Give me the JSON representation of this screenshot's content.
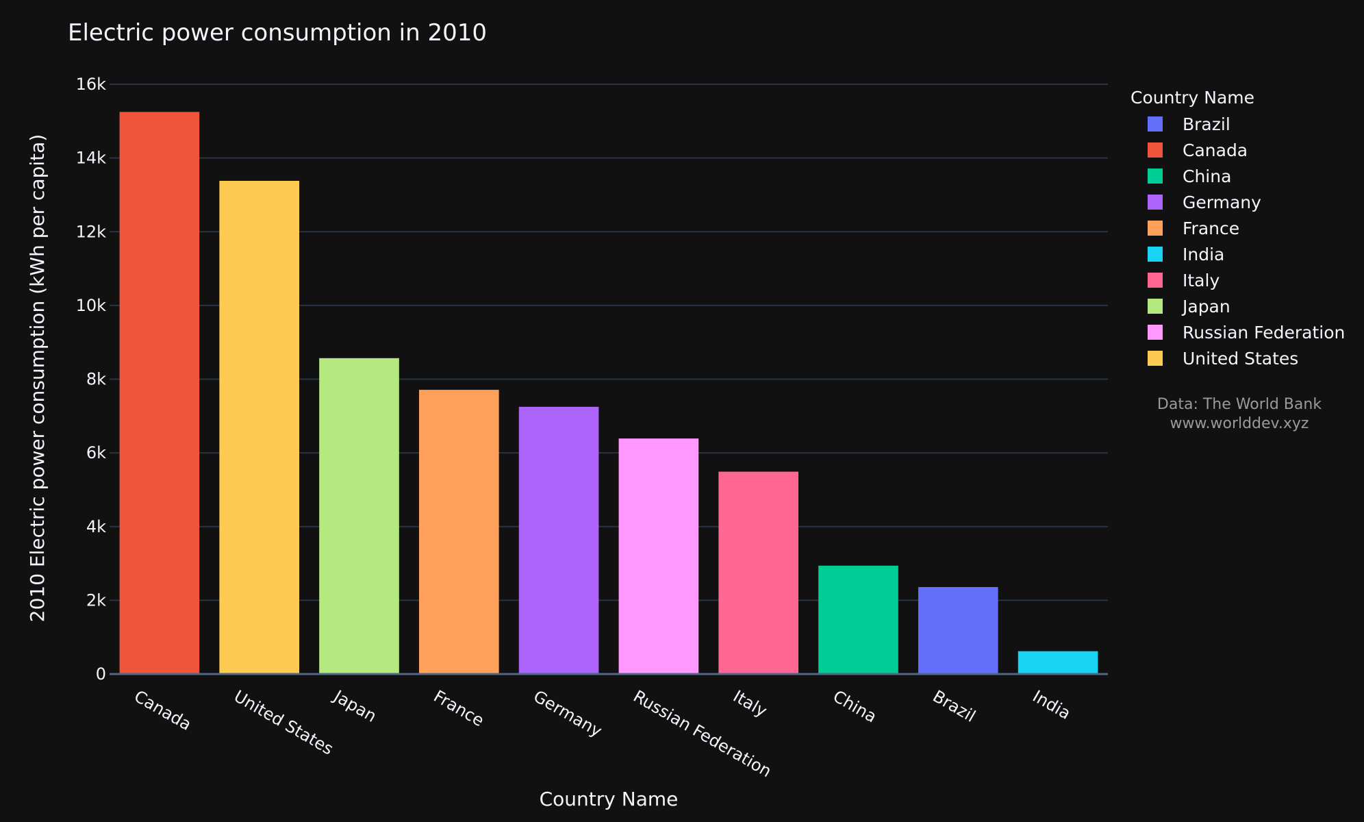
{
  "chart_data": {
    "type": "bar",
    "title": "Electric power consumption in 2010",
    "xlabel": "Country Name",
    "ylabel": "2010 Electric power consumption (kWh per capita)",
    "categories": [
      "Canada",
      "United States",
      "Japan",
      "France",
      "Germany",
      "Russian Federation",
      "Italy",
      "China",
      "Brazil",
      "India"
    ],
    "values": [
      15250,
      13380,
      8570,
      7710,
      7250,
      6390,
      5490,
      2940,
      2360,
      620
    ],
    "bar_colors": [
      "#EF553B",
      "#FECB52",
      "#B6E880",
      "#FFA15A",
      "#AB63FA",
      "#FF97FF",
      "#FF6692",
      "#00CC96",
      "#636EFA",
      "#19D3F3"
    ],
    "ylim": [
      0,
      16000
    ],
    "yticks": [
      0,
      2000,
      4000,
      6000,
      8000,
      10000,
      12000,
      14000,
      16000
    ],
    "ytick_labels": [
      "0",
      "2k",
      "4k",
      "6k",
      "8k",
      "10k",
      "12k",
      "14k",
      "16k"
    ],
    "grid": true,
    "legend": {
      "title": "Country Name",
      "placement": "right",
      "items": [
        {
          "name": "Brazil",
          "color": "#636EFA"
        },
        {
          "name": "Canada",
          "color": "#EF553B"
        },
        {
          "name": "China",
          "color": "#00CC96"
        },
        {
          "name": "Germany",
          "color": "#AB63FA"
        },
        {
          "name": "France",
          "color": "#FFA15A"
        },
        {
          "name": "India",
          "color": "#19D3F3"
        },
        {
          "name": "Italy",
          "color": "#FF6692"
        },
        {
          "name": "Japan",
          "color": "#B6E880"
        },
        {
          "name": "Russian Federation",
          "color": "#FF97FF"
        },
        {
          "name": "United States",
          "color": "#FECB52"
        }
      ]
    },
    "annotation": {
      "line1": "Data: The World Bank",
      "line2": "www.worlddev.xyz"
    },
    "colors": {
      "background": "#111111",
      "text": "#f2f5fa",
      "grid": "#283442",
      "note": "#9a9a9a"
    }
  }
}
